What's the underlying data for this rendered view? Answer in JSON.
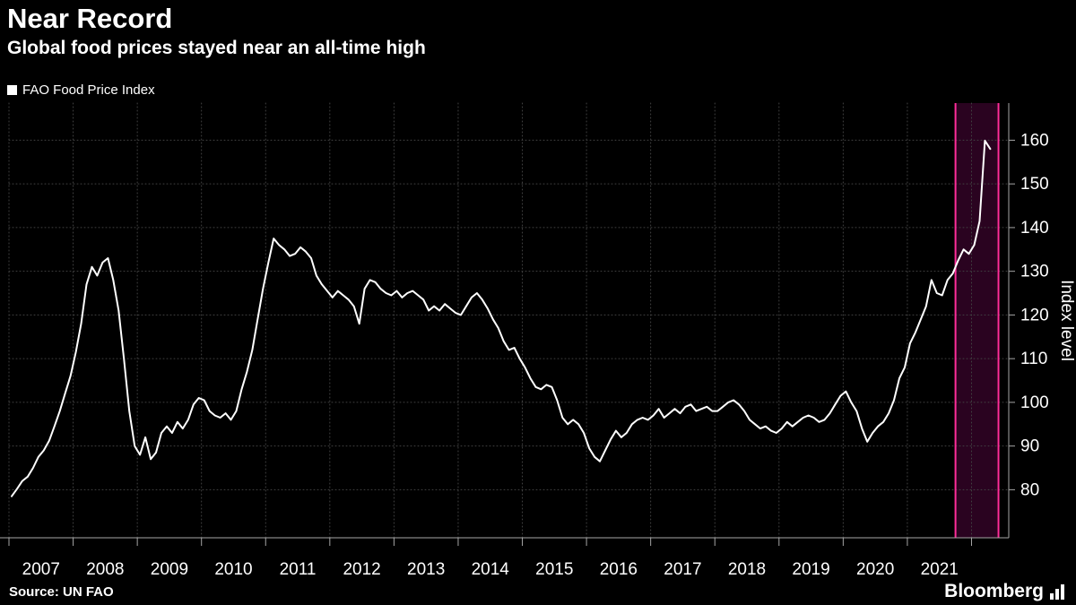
{
  "header": {
    "title": "Near Record",
    "subtitle": "Global food prices stayed near an all-time high"
  },
  "legend": {
    "label": "FAO Food Price Index",
    "swatch_color": "#ffffff"
  },
  "footer": {
    "source": "Source: UN FAO",
    "brand": "Bloomberg"
  },
  "colors": {
    "background": "#000000",
    "text": "#ffffff",
    "grid": "#424242",
    "axis": "#a6a6a6",
    "line": "#ffffff",
    "highlight_fill": "#2a0320",
    "highlight_border": "#ff2d9a"
  },
  "chart_data": {
    "type": "line",
    "title": "Near Record",
    "subtitle": "Global food prices stayed near an all-time high",
    "xlabel": "",
    "ylabel": "Index level",
    "y_ticks": [
      80,
      90,
      100,
      110,
      120,
      130,
      140,
      150,
      160
    ],
    "ylim": [
      69,
      168.5
    ],
    "xlim": [
      2007,
      2022.58
    ],
    "x_tick_years": [
      2007,
      2008,
      2009,
      2010,
      2011,
      2012,
      2013,
      2014,
      2015,
      2016,
      2017,
      2018,
      2019,
      2020,
      2021
    ],
    "grid": true,
    "legend_position": "top-left",
    "source": "UN FAO",
    "highlight_region": {
      "x_start": 2021.75,
      "x_end": 2022.42,
      "fill": "#2a0320",
      "border": "#ff2d9a"
    },
    "series": [
      {
        "name": "FAO Food Price Index",
        "color": "#ffffff",
        "x_start": 2007.042,
        "x_step": 0.0833333,
        "values": [
          78.5,
          80.2,
          82.0,
          83.0,
          85.0,
          87.5,
          89.0,
          91.2,
          94.5,
          98.0,
          102.0,
          106.0,
          111.5,
          118.0,
          127.0,
          131.0,
          129.0,
          132.0,
          133.0,
          128.0,
          121.0,
          110.0,
          98.0,
          90.0,
          88.0,
          92.0,
          87.0,
          88.5,
          93.0,
          94.5,
          93.0,
          95.5,
          94.0,
          96.0,
          99.5,
          101.0,
          100.5,
          98.0,
          97.0,
          96.5,
          97.5,
          96.0,
          98.0,
          103.0,
          107.0,
          112.0,
          119.0,
          126.0,
          132.0,
          137.5,
          136.0,
          135.0,
          133.5,
          134.0,
          135.5,
          134.5,
          133.0,
          129.0,
          127.0,
          125.5,
          124.0,
          125.5,
          124.5,
          123.5,
          122.0,
          118.0,
          126.0,
          128.0,
          127.5,
          126.0,
          125.0,
          124.5,
          125.5,
          124.0,
          125.0,
          125.5,
          124.5,
          123.5,
          121.0,
          122.0,
          121.0,
          122.5,
          121.5,
          120.5,
          120.0,
          122.0,
          124.0,
          125.0,
          123.5,
          121.5,
          119.0,
          117.0,
          114.0,
          112.0,
          112.5,
          110.0,
          108.0,
          105.5,
          103.5,
          103.0,
          104.0,
          103.5,
          100.5,
          96.5,
          95.0,
          96.0,
          95.0,
          93.0,
          89.5,
          87.5,
          86.5,
          89.0,
          91.5,
          93.5,
          92.0,
          93.0,
          95.0,
          96.0,
          96.5,
          96.0,
          97.0,
          98.5,
          96.5,
          97.5,
          98.5,
          97.5,
          99.0,
          99.5,
          98.0,
          98.5,
          99.0,
          98.0,
          98.0,
          99.0,
          100.0,
          100.5,
          99.5,
          98.0,
          96.0,
          95.0,
          94.0,
          94.5,
          93.5,
          93.0,
          94.0,
          95.5,
          94.5,
          95.5,
          96.5,
          97.0,
          96.5,
          95.5,
          96.0,
          97.5,
          99.5,
          101.5,
          102.5,
          100.0,
          98.0,
          94.0,
          91.0,
          93.0,
          94.5,
          95.5,
          97.5,
          100.5,
          105.5,
          108.0,
          113.5,
          116.0,
          119.0,
          122.0,
          128.0,
          125.0,
          124.5,
          128.0,
          129.5,
          132.5,
          135.0,
          134.0,
          136.0,
          141.5,
          159.9,
          158.0
        ]
      }
    ]
  }
}
